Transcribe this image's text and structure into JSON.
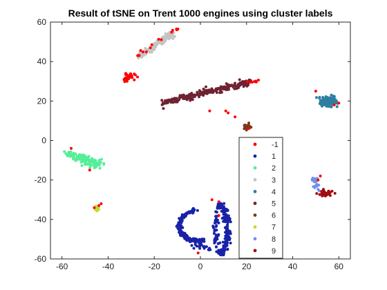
{
  "chart_data": {
    "type": "scatter",
    "title": "Result of tSNE on Trent 1000 engines using cluster labels",
    "xlabel": "",
    "ylabel": "",
    "xlim": [
      -65,
      65
    ],
    "ylim": [
      -60,
      60
    ],
    "xticks": [
      -60,
      -40,
      -20,
      0,
      20,
      40,
      60
    ],
    "yticks": [
      -60,
      -40,
      -20,
      0,
      20,
      40,
      60
    ],
    "grid": false,
    "legend_position": "inside lower-right",
    "series": [
      {
        "name": "-1",
        "color": "#ff0000",
        "marker_size": 4,
        "clusters": [
          {
            "type": "blob",
            "center": [
              -31,
              32
            ],
            "spread": [
              2.5,
              1.5
            ],
            "count": 34
          },
          {
            "type": "line",
            "from": [
              -28,
              42
            ],
            "to": [
              -12,
              56
            ],
            "jitter": 0.8,
            "count": 12
          },
          {
            "type": "line",
            "from": [
              -11,
              56
            ],
            "to": [
              -10,
              56.5
            ],
            "jitter": 0.5,
            "count": 4
          },
          {
            "type": "line",
            "from": [
              20,
              30
            ],
            "to": [
              25,
              30
            ],
            "jitter": 0.6,
            "count": 8
          },
          {
            "type": "points",
            "points": [
              [
                4,
                15
              ],
              [
                11,
                15
              ],
              [
                12,
                14
              ],
              [
                15,
                12
              ],
              [
                5,
                -30
              ],
              [
                8,
                -31
              ],
              [
                -1,
                -57
              ],
              [
                58,
                18
              ],
              [
                60,
                19
              ],
              [
                50,
                25
              ],
              [
                51,
                -20
              ],
              [
                52,
                -18
              ],
              [
                -56,
                -4
              ],
              [
                -48,
                -15
              ],
              [
                -44,
                -33
              ],
              [
                -46,
                -34
              ],
              [
                -43,
                -32
              ],
              [
                21,
                6
              ],
              [
                8,
                -38
              ]
            ]
          }
        ]
      },
      {
        "name": "1",
        "color": "#1822a8",
        "marker_size": 4,
        "clusters": [
          {
            "type": "arc",
            "center": [
              -1,
              -43
            ],
            "rx": 8,
            "ry": 8,
            "start": 100,
            "end": 290,
            "jitter": 1.2,
            "count": 150
          },
          {
            "type": "line",
            "from": [
              -3,
              -53
            ],
            "to": [
              4,
              -55
            ],
            "jitter": 1.0,
            "count": 20
          },
          {
            "type": "arc",
            "center": [
              8,
              -45
            ],
            "rx": 4,
            "ry": 12,
            "start": -90,
            "end": 90,
            "jitter": 1.3,
            "count": 170
          },
          {
            "type": "line",
            "from": [
              7,
              -36
            ],
            "to": [
              7,
              -55
            ],
            "jitter": 1.0,
            "count": 40
          }
        ]
      },
      {
        "name": "2",
        "color": "#55ee99",
        "marker_size": 4,
        "clusters": [
          {
            "type": "line",
            "from": [
              -57,
              -7
            ],
            "to": [
              -44,
              -12
            ],
            "jitter": 2.0,
            "count": 150
          }
        ]
      },
      {
        "name": "3",
        "color": "#c4c4c4",
        "marker_size": 4,
        "clusters": [
          {
            "type": "line",
            "from": [
              -27,
              42
            ],
            "to": [
              -12,
              54.5
            ],
            "jitter": 1.2,
            "count": 120
          }
        ]
      },
      {
        "name": "4",
        "color": "#2e7ea0",
        "marker_size": 4,
        "clusters": [
          {
            "type": "blob",
            "center": [
              55,
              20
            ],
            "spread": [
              3.5,
              2.2
            ],
            "count": 110
          }
        ]
      },
      {
        "name": "5",
        "color": "#6e2232",
        "marker_size": 4,
        "clusters": [
          {
            "type": "line",
            "from": [
              -16,
              19
            ],
            "to": [
              22,
              30
            ],
            "jitter": 1.3,
            "count": 230
          }
        ]
      },
      {
        "name": "6",
        "color": "#7a3a1a",
        "marker_size": 4,
        "clusters": [
          {
            "type": "blob",
            "center": [
              20,
              7
            ],
            "spread": [
              1.4,
              1.2
            ],
            "count": 30
          }
        ]
      },
      {
        "name": "7",
        "color": "#c8d82a",
        "marker_size": 4,
        "clusters": [
          {
            "type": "blob",
            "center": [
              -45,
              -34.5
            ],
            "spread": [
              0.9,
              0.8
            ],
            "count": 20
          }
        ]
      },
      {
        "name": "8",
        "color": "#7090f0",
        "marker_size": 4,
        "clusters": [
          {
            "type": "line",
            "from": [
              49,
              -19
            ],
            "to": [
              51,
              -25
            ],
            "jitter": 1.0,
            "count": 30
          }
        ]
      },
      {
        "name": "9",
        "color": "#a00c10",
        "marker_size": 4,
        "clusters": [
          {
            "type": "blob",
            "center": [
              54,
              -27
            ],
            "spread": [
              2.8,
              1.3
            ],
            "count": 50
          }
        ]
      }
    ]
  }
}
